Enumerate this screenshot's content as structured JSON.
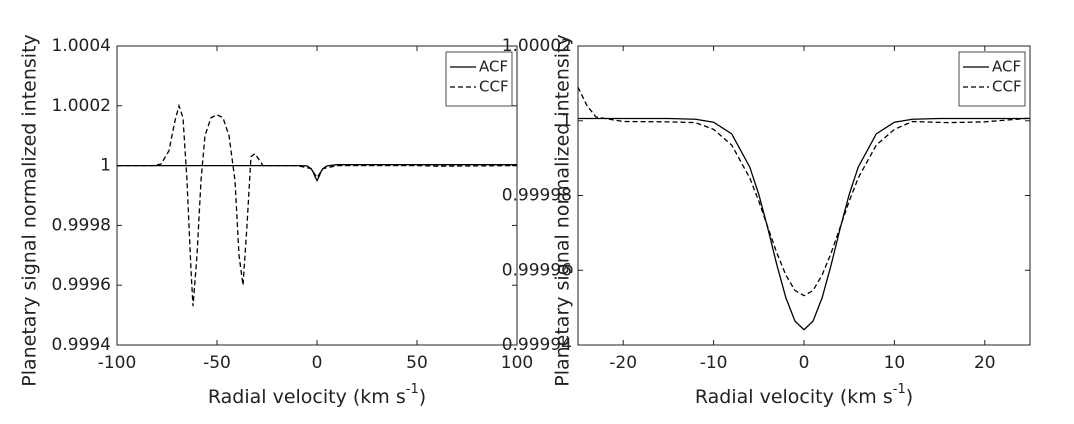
{
  "chart_data": [
    {
      "type": "line",
      "ylabel": "Planetary signal normalized intensity",
      "xlabel": {
        "text": "Radial velocity (km s",
        "superscript": "-1",
        "suffix": ")"
      },
      "xlim": [
        -100,
        100
      ],
      "xticks": [
        -100,
        -50,
        0,
        50,
        100
      ],
      "ylim": [
        0.9994,
        1.0004
      ],
      "yticks": [
        0.9994,
        0.9996,
        0.9998,
        1,
        1.0002,
        1.0004
      ],
      "legend": "upper right",
      "series": [
        {
          "name": "ACF",
          "color": "#000000",
          "linestyle": "solid",
          "x": [
            -100,
            -10,
            -5,
            -3,
            -2,
            -1,
            0,
            1,
            2,
            3,
            5,
            10,
            100
          ],
          "values": [
            1,
            1,
            0.999999,
            0.99999,
            0.99998,
            0.999963,
            0.99995,
            0.999963,
            0.99998,
            0.99999,
            0.999999,
            1.000003,
            1.000003
          ]
        },
        {
          "name": "CCF",
          "color": "#000000",
          "linestyle": "dashed",
          "x": [
            -100,
            -82,
            -78,
            -74,
            -71,
            -69,
            -67,
            -65,
            -63,
            -62,
            -60,
            -58,
            -56,
            -53,
            -50,
            -47,
            -44,
            -41,
            -39,
            -37,
            -35,
            -33,
            -31,
            -29,
            -27,
            -20,
            -10,
            -3,
            -1,
            0,
            1,
            3,
            10,
            50,
            60,
            100
          ],
          "values": [
            1,
            1,
            1.000005,
            1.00005,
            1.00015,
            1.0002,
            1.00016,
            0.99995,
            0.99965,
            0.99953,
            0.9997,
            0.99995,
            1.0001,
            1.00016,
            1.00017,
            1.00016,
            1.0001,
            0.99995,
            0.9997,
            0.9996,
            0.9998,
            1.00003,
            1.00004,
            1.00002,
            1,
            1,
            1,
            0.99999,
            0.99997,
            0.99996,
            0.99997,
            0.99999,
            1,
            1,
            0.999998,
            1
          ]
        }
      ]
    },
    {
      "type": "line",
      "ylabel": "Planetary signal normalized intensity",
      "xlabel": {
        "text": "Radial velocity (km s",
        "superscript": "-1",
        "suffix": ")"
      },
      "xlim": [
        -25,
        25
      ],
      "xticks": [
        -20,
        -10,
        0,
        10,
        20
      ],
      "ylim": [
        0.99994,
        1.00002
      ],
      "yticks": [
        0.99994,
        0.99996,
        0.99998,
        1,
        1.00002
      ],
      "legend": "upper right",
      "series": [
        {
          "name": "ACF",
          "color": "#000000",
          "linestyle": "solid",
          "x": [
            -25,
            -15,
            -12,
            -10,
            -8,
            -6,
            -5,
            -4,
            -3,
            -2,
            -1,
            0,
            1,
            2,
            3,
            4,
            5,
            6,
            8,
            10,
            12,
            15,
            25
          ],
          "values": [
            1.0000006,
            1.0000006,
            1.0000004,
            0.9999996,
            0.9999965,
            0.9999876,
            0.9999803,
            0.9999712,
            0.9999614,
            0.9999526,
            0.9999464,
            0.9999441,
            0.9999464,
            0.9999526,
            0.9999614,
            0.9999712,
            0.9999803,
            0.9999876,
            0.9999965,
            0.9999996,
            1.0000004,
            1.0000006,
            1.0000006
          ]
        },
        {
          "name": "CCF",
          "color": "#000000",
          "linestyle": "dashed",
          "x": [
            -25,
            -24,
            -23,
            -20,
            -15,
            -12,
            -10,
            -8,
            -6,
            -5,
            -4,
            -3,
            -2,
            -1,
            0,
            1,
            2,
            3,
            4,
            5,
            6,
            8,
            10,
            12,
            16,
            20,
            25
          ],
          "values": [
            1.000009,
            1.000004,
            1.000001,
            0.9999998,
            0.9999997,
            0.9999995,
            0.9999977,
            0.9999935,
            0.9999847,
            0.9999785,
            0.9999715,
            0.9999646,
            0.9999587,
            0.9999546,
            0.9999532,
            0.9999546,
            0.9999587,
            0.9999646,
            0.9999715,
            0.9999785,
            0.9999847,
            0.9999935,
            0.9999977,
            0.9999998,
            0.9999995,
            0.9999997,
            1.0000007
          ]
        }
      ]
    }
  ]
}
